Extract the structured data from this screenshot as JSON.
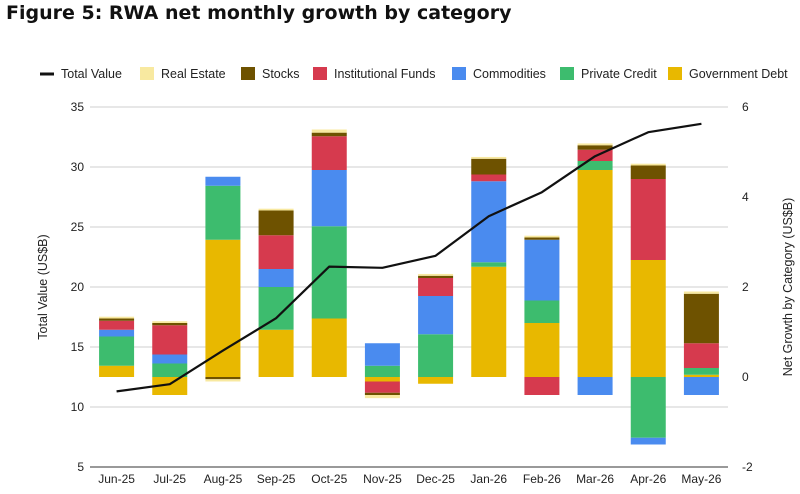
{
  "figure_title": "Figure 5: RWA net monthly growth by category",
  "chart_data": {
    "type": "bar",
    "subtype": "stacked-bar-with-line",
    "categories": [
      "Jun-25",
      "Jul-25",
      "Aug-25",
      "Sep-25",
      "Oct-25",
      "Nov-25",
      "Dec-25",
      "Jan-26",
      "Feb-26",
      "Mar-26",
      "Apr-26",
      "May-26"
    ],
    "ylabel_left": "Total Value (US$B)",
    "ylabel_right": "Net Growth by Category (US$B)",
    "ylim_left": [
      5,
      35
    ],
    "yticks_left": [
      5,
      10,
      15,
      20,
      25,
      30,
      35
    ],
    "ylim_right": [
      -2,
      6
    ],
    "yticks_right": [
      -2,
      0,
      2,
      4,
      6
    ],
    "grid": true,
    "legend_position": "top",
    "line_series": {
      "name": "Total Value",
      "color": "#111111",
      "axis": "left",
      "values": [
        11.3,
        11.9,
        14.7,
        17.4,
        21.7,
        21.6,
        22.6,
        25.9,
        27.9,
        30.9,
        32.9,
        33.6
      ]
    },
    "series": [
      {
        "name": "Government Debt",
        "color": "#E8B800",
        "axis": "right",
        "values": [
          0.25,
          -0.4,
          3.05,
          1.05,
          1.3,
          -0.1,
          -0.15,
          2.45,
          1.2,
          4.6,
          2.6,
          0.05
        ]
      },
      {
        "name": "Private Credit",
        "color": "#3DBC6E",
        "axis": "right",
        "values": [
          0.65,
          0.3,
          1.2,
          0.95,
          2.05,
          0.25,
          0.95,
          0.1,
          0.5,
          0.2,
          -1.35,
          0.15
        ]
      },
      {
        "name": "Commodities",
        "color": "#4A8BEF",
        "axis": "right",
        "values": [
          0.15,
          0.2,
          0.2,
          0.4,
          1.25,
          0.5,
          0.85,
          1.8,
          1.35,
          -0.4,
          -0.15,
          -0.4
        ]
      },
      {
        "name": "Institutional Funds",
        "color": "#D63A4E",
        "axis": "right",
        "values": [
          0.2,
          0.65,
          0.0,
          0.75,
          0.75,
          -0.25,
          0.4,
          0.15,
          -0.4,
          0.25,
          1.8,
          0.55
        ]
      },
      {
        "name": "Stocks",
        "color": "#6E5200",
        "axis": "right",
        "values": [
          0.05,
          0.05,
          -0.05,
          0.55,
          0.08,
          -0.05,
          0.05,
          0.35,
          0.05,
          0.1,
          0.3,
          1.1
        ]
      },
      {
        "name": "Real Estate",
        "color": "#F8E9A0",
        "axis": "right",
        "values": [
          0.04,
          0.04,
          -0.05,
          0.04,
          0.07,
          -0.07,
          0.04,
          0.04,
          0.04,
          0.04,
          0.04,
          0.05
        ]
      }
    ],
    "legend_order": [
      "Total Value",
      "Real Estate",
      "Stocks",
      "Institutional Funds",
      "Commodities",
      "Private Credit",
      "Government Debt"
    ]
  }
}
